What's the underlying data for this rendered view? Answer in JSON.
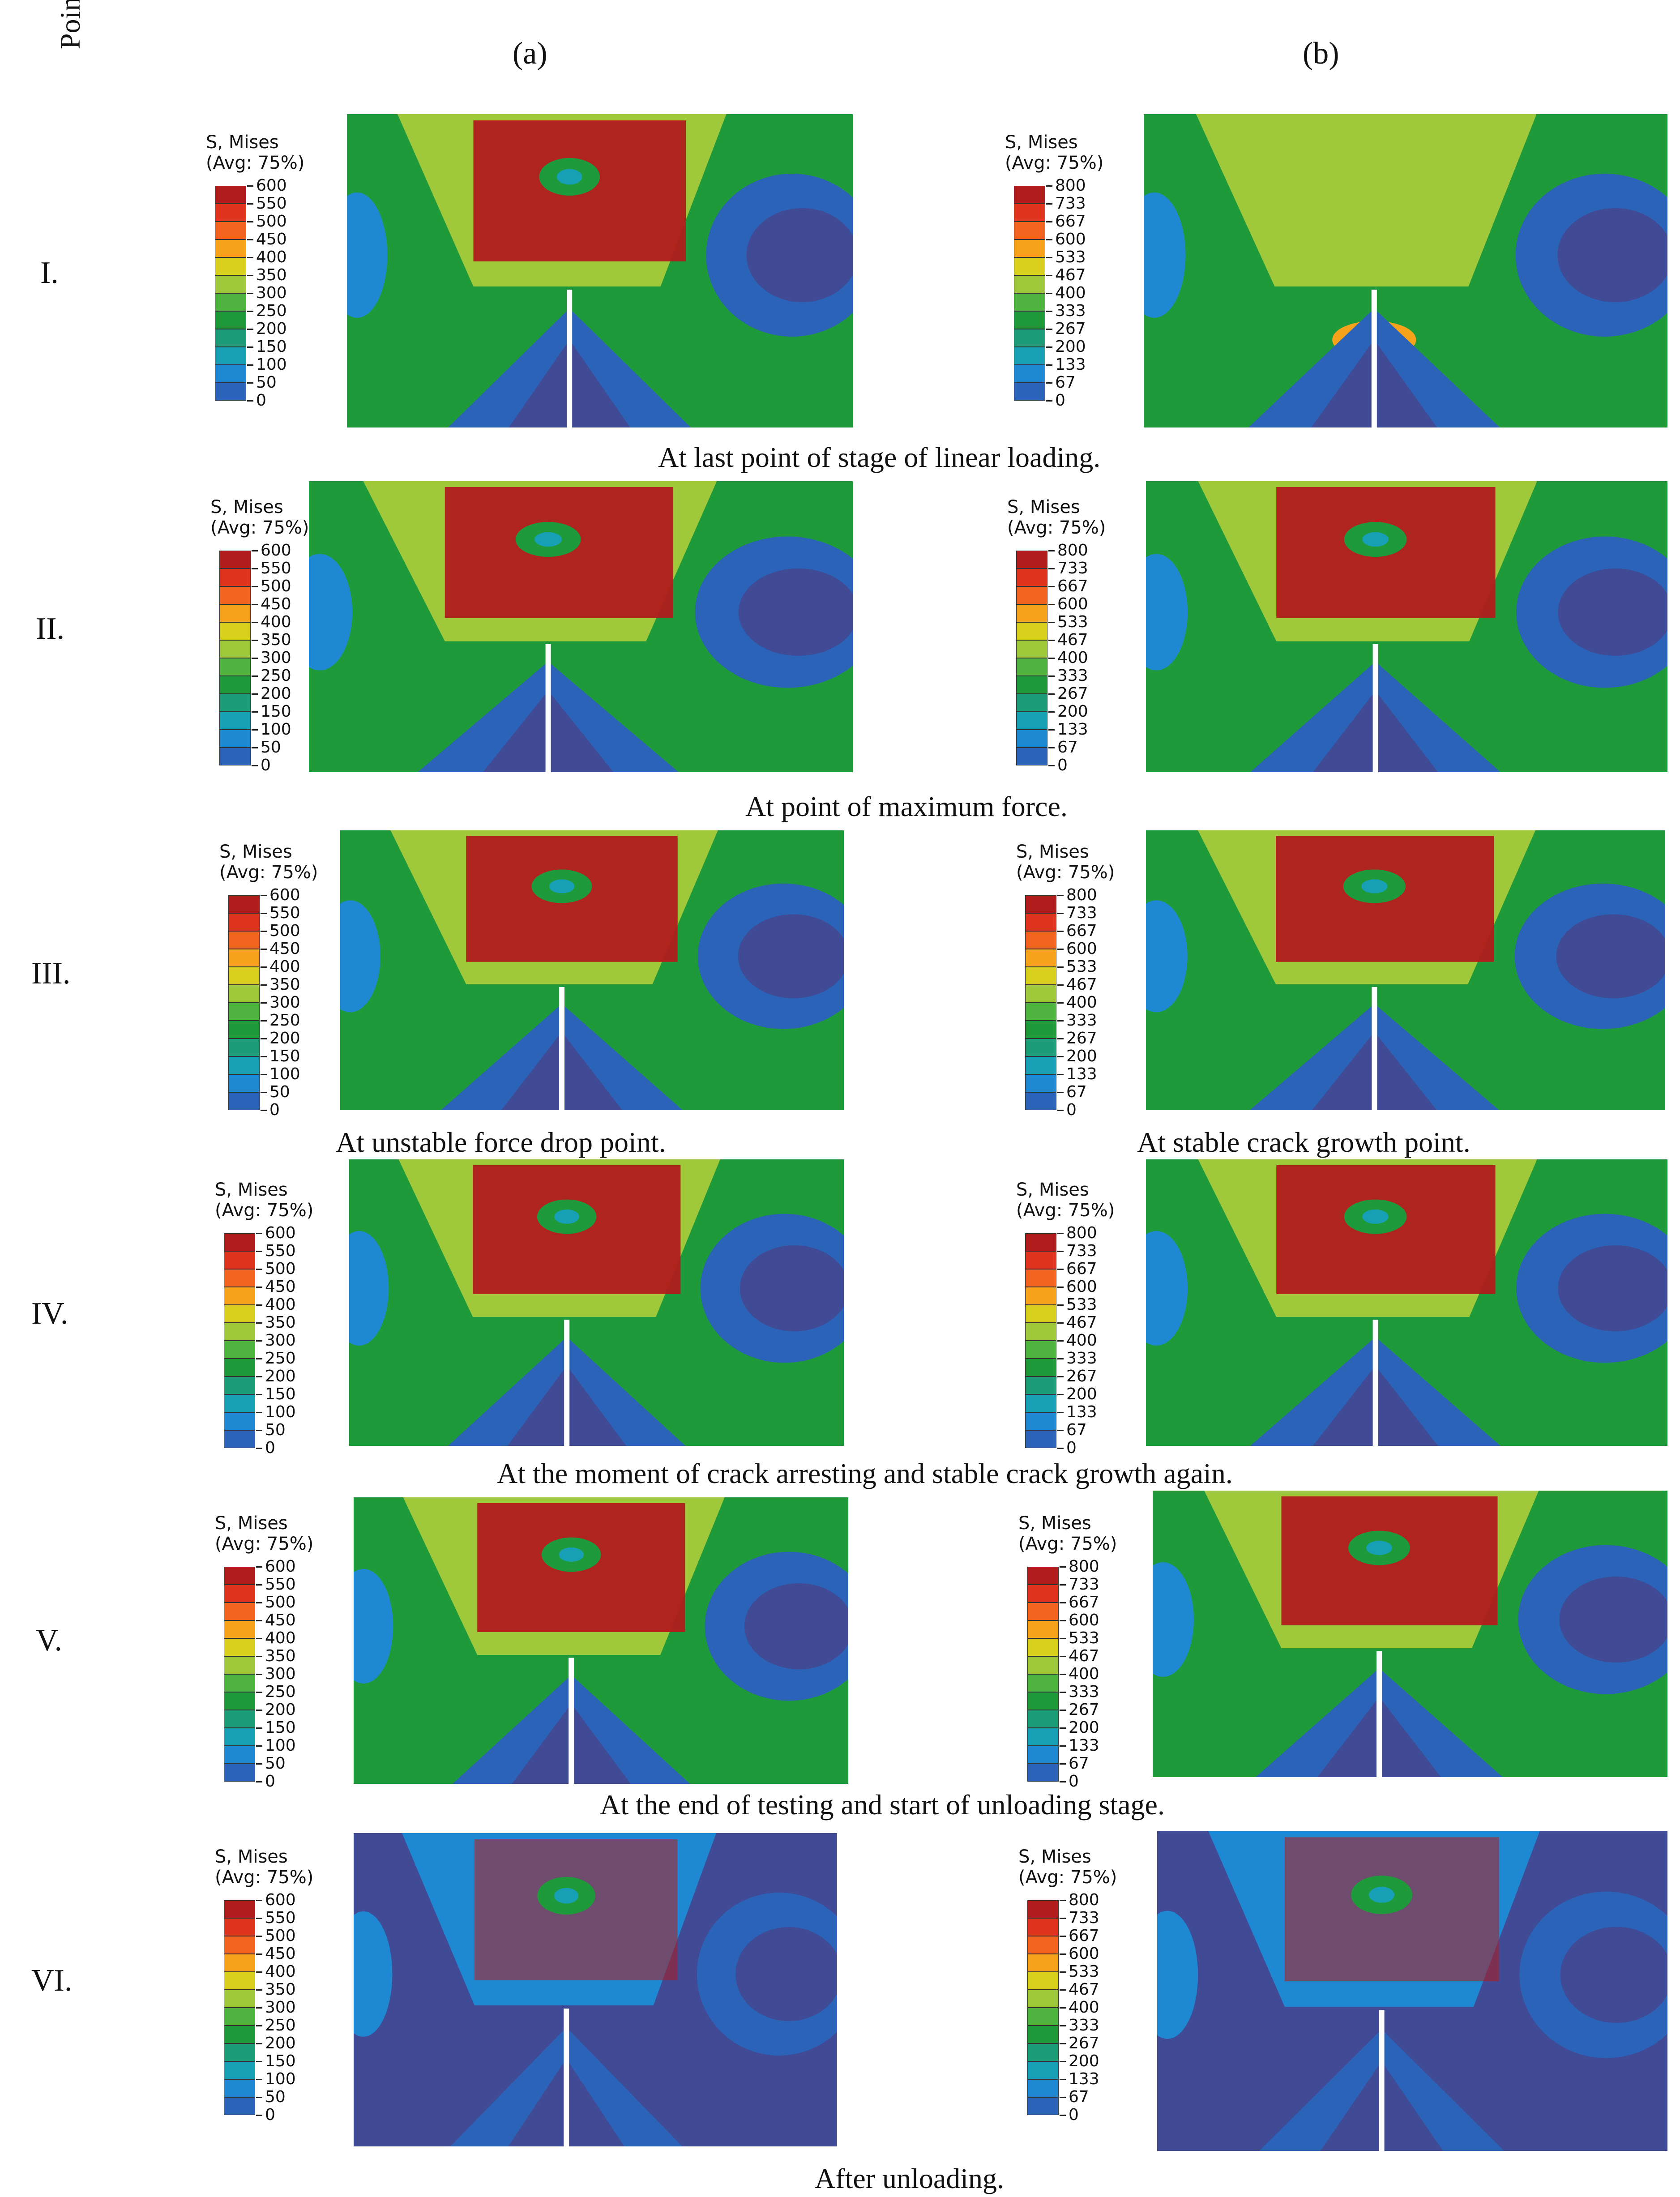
{
  "header": {
    "point_label": "Point",
    "col_a": "(a)",
    "col_b": "(b)"
  },
  "legend": {
    "title_line1": "S, Mises",
    "title_line2": "(Avg: 75%)",
    "scale_a": [
      "600",
      "550",
      "500",
      "450",
      "400",
      "350",
      "300",
      "250",
      "200",
      "150",
      "100",
      "50",
      "0"
    ],
    "scale_b": [
      "800",
      "733",
      "667",
      "600",
      "533",
      "467",
      "400",
      "333",
      "267",
      "200",
      "133",
      "67",
      "0"
    ],
    "colors": [
      "#b01c1c",
      "#e0341e",
      "#f2641f",
      "#f7a21b",
      "#d9cf1e",
      "#9fc83b",
      "#4fb33f",
      "#1f9a3a",
      "#1b9e77",
      "#17a0b5",
      "#1f88d2",
      "#2a63b8",
      "#414a94"
    ]
  },
  "rows": [
    {
      "label": "I.",
      "caption": "At last point of stage of linear loading."
    },
    {
      "label": "II.",
      "caption": "At point of maximum force."
    },
    {
      "label": "III.",
      "caption_a": "At unstable force drop point.",
      "caption_b": "At stable crack growth point."
    },
    {
      "label": "IV.",
      "caption": "At the moment of crack arresting and stable crack growth again."
    },
    {
      "label": "V.",
      "caption": "At the end of testing and start of unloading stage."
    },
    {
      "label": "VI.",
      "caption": "After unloading."
    }
  ]
}
